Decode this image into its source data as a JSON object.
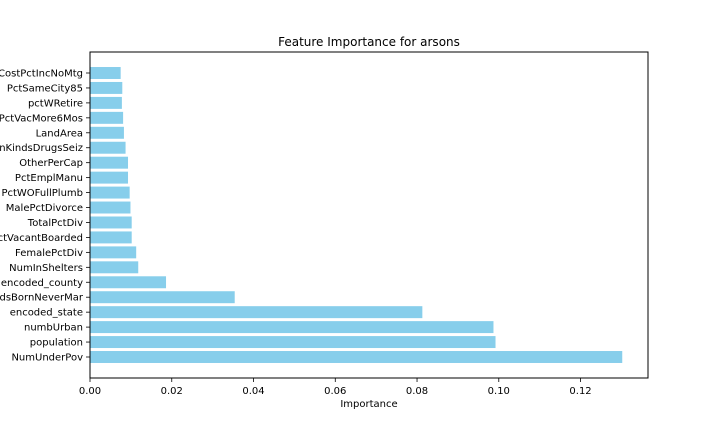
{
  "chart_data": {
    "type": "bar",
    "orientation": "horizontal",
    "title": "Feature Importance for arsons",
    "xlabel": "Importance",
    "ylabel": "",
    "bar_color": "#87ceeb",
    "xlim": [
      0,
      0.1365
    ],
    "xticks": [
      0.0,
      0.02,
      0.04,
      0.06,
      0.08,
      0.1,
      0.12
    ],
    "xtick_labels": [
      "0.00",
      "0.02",
      "0.04",
      "0.06",
      "0.08",
      "0.10",
      "0.12"
    ],
    "categories": [
      "NumUnderPov",
      "population",
      "numbUrban",
      "encoded_state",
      "PctKidsBornNeverMar",
      "encoded_county",
      "NumInShelters",
      "FemalePctDiv",
      "PctVacantBoarded",
      "TotalPctDiv",
      "MalePctDivorce",
      "PctWOFullPlumb",
      "PctEmplManu",
      "OtherPerCap",
      "LemasPctOfficDrugUn KindsDrugsSeiz",
      "LandArea",
      "PctVacMore6Mos",
      "pctWRetire",
      "PctSameCity85",
      "MedOwnCostPctIncNoMtg"
    ],
    "tick_labels": [
      "NumUnderPov",
      "population",
      "numbUrban",
      "encoded_state",
      "dsBornNeverMar",
      "encoded_county",
      "NumInShelters",
      "FemalePctDiv",
      "ctVacantBoarded",
      "TotalPctDiv",
      "MalePctDivorce",
      "PctWOFullPlumb",
      "PctEmplManu",
      "OtherPerCap",
      "nKindsDrugsSeiz",
      "LandArea",
      "PctVacMore6Mos",
      "pctWRetire",
      "PctSameCity85",
      "CostPctIncNoMtg"
    ],
    "values": [
      0.1302,
      0.0992,
      0.0987,
      0.0813,
      0.0354,
      0.0186,
      0.0118,
      0.0113,
      0.0102,
      0.0102,
      0.0099,
      0.0097,
      0.0093,
      0.0093,
      0.0087,
      0.0083,
      0.0081,
      0.0078,
      0.0079,
      0.0075
    ]
  }
}
